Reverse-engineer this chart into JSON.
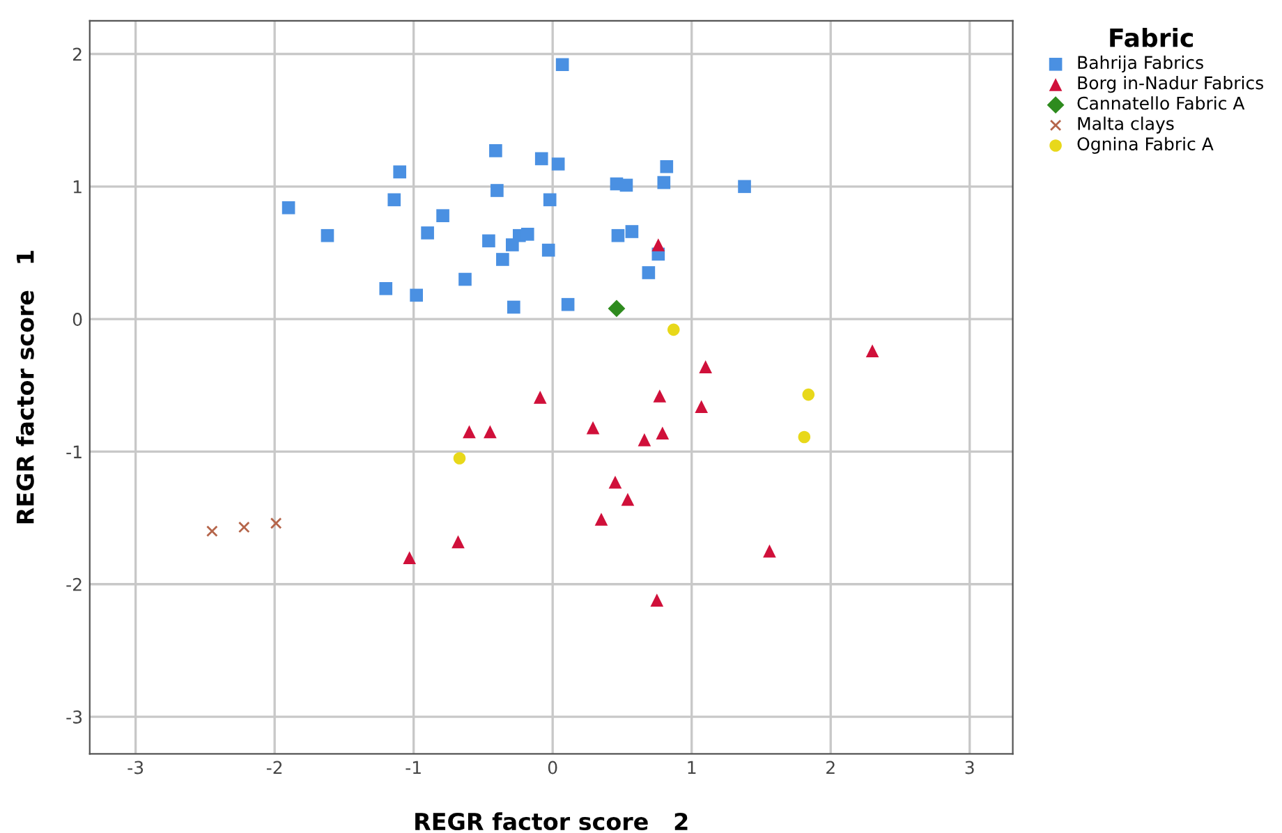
{
  "chart_data": {
    "type": "scatter",
    "xlabel": "REGR factor score   2",
    "ylabel": "REGR factor score   1",
    "legend_title": "Fabric",
    "legend": "top right",
    "grid": true,
    "xlim": [
      -3.33,
      3.31
    ],
    "ylim": [
      -3.28,
      2.25
    ],
    "xticks": [
      -3,
      -2,
      -1,
      0,
      1,
      2,
      3
    ],
    "yticks": [
      -3,
      -2,
      -1,
      0,
      1,
      2
    ],
    "series": [
      {
        "name": "Bahrija Fabrics",
        "color": "#4a90e2",
        "marker": "square",
        "x": [
          0.07,
          -0.41,
          -0.08,
          0.04,
          -1.1,
          0.82,
          0.46,
          0.53,
          0.8,
          1.38,
          -0.4,
          -1.14,
          -0.02,
          -1.9,
          -0.79,
          -1.62,
          -0.9,
          -0.46,
          -0.29,
          -0.24,
          -0.18,
          -0.36,
          -0.03,
          0.47,
          0.57,
          0.76,
          0.69,
          -1.2,
          -0.98,
          -0.63,
          -0.28,
          0.11
        ],
        "values": [
          1.92,
          1.27,
          1.21,
          1.17,
          1.11,
          1.15,
          1.02,
          1.01,
          1.03,
          1.0,
          0.97,
          0.9,
          0.9,
          0.84,
          0.78,
          0.63,
          0.65,
          0.59,
          0.56,
          0.63,
          0.64,
          0.45,
          0.52,
          0.63,
          0.66,
          0.49,
          0.35,
          0.23,
          0.18,
          0.3,
          0.09,
          0.11
        ]
      },
      {
        "name": "Borg in-Nadur Fabrics",
        "color": "#d0103a",
        "marker": "triangle",
        "x": [
          0.76,
          2.3,
          1.1,
          -0.09,
          0.77,
          1.07,
          -0.6,
          -0.45,
          0.29,
          0.66,
          0.79,
          0.45,
          0.54,
          0.35,
          -0.68,
          -1.03,
          1.56,
          0.75
        ],
        "values": [
          0.56,
          -0.24,
          -0.36,
          -0.59,
          -0.58,
          -0.66,
          -0.85,
          -0.85,
          -0.82,
          -0.91,
          -0.86,
          -1.23,
          -1.36,
          -1.51,
          -1.68,
          -1.8,
          -1.75,
          -2.12
        ]
      },
      {
        "name": "Cannatello Fabric A",
        "color": "#2e8b1e",
        "marker": "diamond",
        "x": [
          0.46
        ],
        "values": [
          0.08
        ]
      },
      {
        "name": "Malta clays",
        "color": "#b5654a",
        "marker": "cross",
        "x": [
          -2.45,
          -2.22,
          -1.99
        ],
        "values": [
          -1.6,
          -1.57,
          -1.54
        ]
      },
      {
        "name": "Ognina Fabric A",
        "color": "#e8d81a",
        "marker": "circle",
        "x": [
          0.87,
          1.84,
          1.81,
          -0.67
        ],
        "values": [
          -0.08,
          -0.57,
          -0.89,
          -1.05
        ]
      }
    ]
  }
}
